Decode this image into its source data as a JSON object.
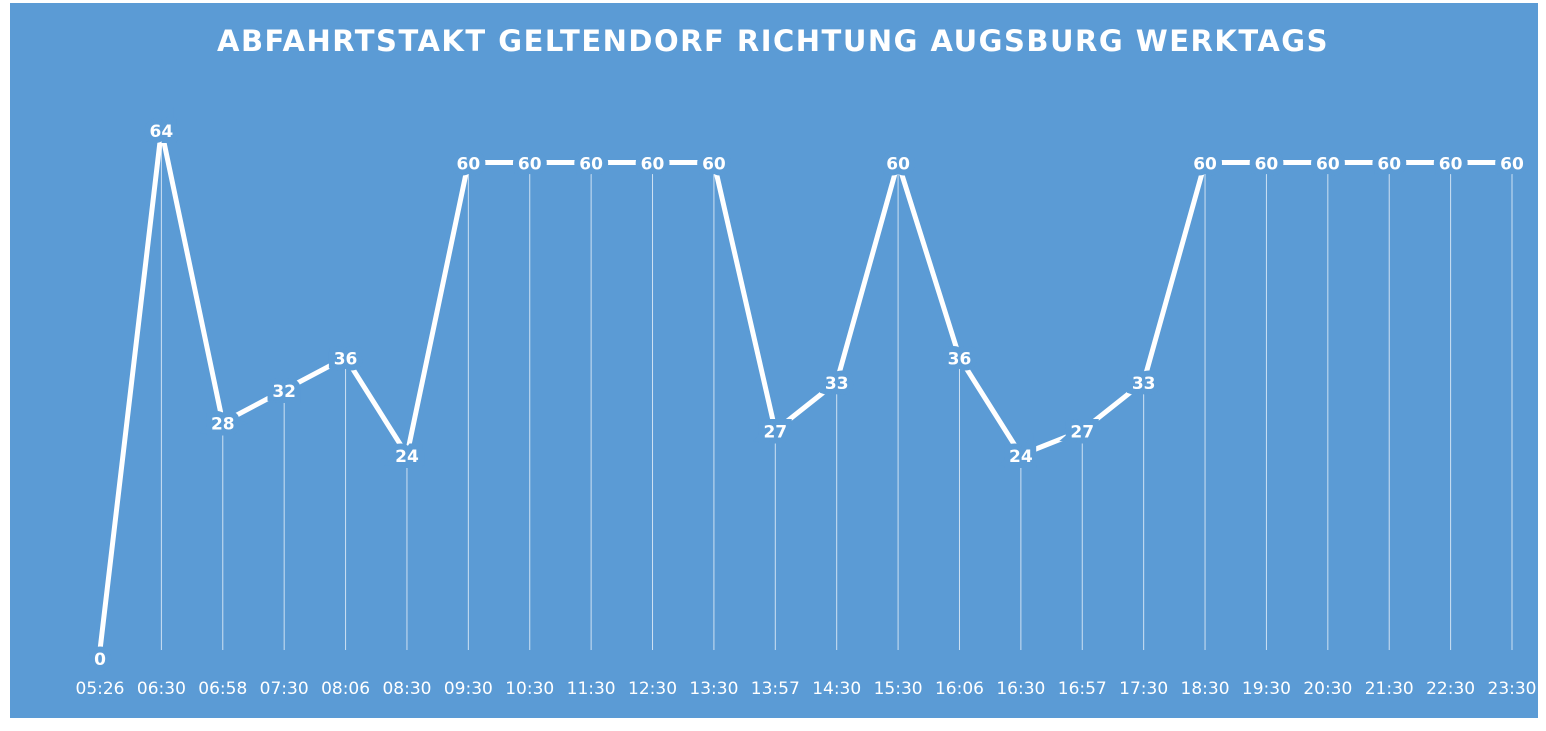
{
  "chart_data": {
    "type": "line",
    "title": "ABFAHRTSTAKT GELTENDORF RICHTUNG AUGSBURG WERKTAGS",
    "categories": [
      "05:26",
      "06:30",
      "06:58",
      "07:30",
      "08:06",
      "08:30",
      "09:30",
      "10:30",
      "11:30",
      "12:30",
      "13:30",
      "13:57",
      "14:30",
      "15:30",
      "16:06",
      "16:30",
      "16:57",
      "17:30",
      "18:30",
      "19:30",
      "20:30",
      "21:30",
      "22:30",
      "23:30"
    ],
    "values": [
      0,
      64,
      28,
      32,
      36,
      24,
      60,
      60,
      60,
      60,
      60,
      27,
      33,
      60,
      36,
      24,
      27,
      33,
      60,
      60,
      60,
      60,
      60,
      60
    ],
    "color": "#ffffff",
    "background": "#5b9bd5",
    "ylim": [
      0,
      64
    ],
    "drop_lines": true
  }
}
